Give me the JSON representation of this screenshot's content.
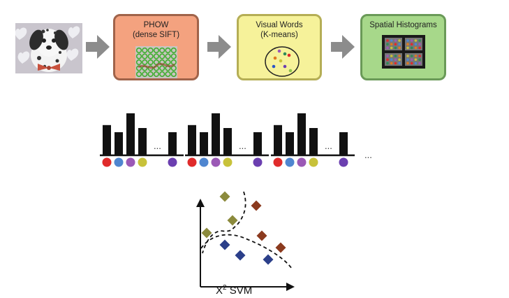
{
  "pipeline": {
    "phow": {
      "title": "PHOW",
      "subtitle": "(dense SIFT)"
    },
    "visual_words": {
      "title": "Visual Words",
      "subtitle": "(K-means)"
    },
    "spatial_histograms": {
      "title": "Spatial Histograms"
    }
  },
  "histograms": {
    "groups": [
      {
        "bars": [
          0.72,
          0.55,
          1.0,
          0.65
        ],
        "last_bar": 0.55
      },
      {
        "bars": [
          0.72,
          0.55,
          1.0,
          0.65
        ],
        "last_bar": 0.55
      },
      {
        "bars": [
          0.72,
          0.55,
          1.0,
          0.65
        ],
        "last_bar": 0.55
      }
    ],
    "word_colors": [
      "#e02b2b",
      "#4f86d0",
      "#9b59b6",
      "#c8c23a"
    ],
    "last_word_color": "#6b3fb0",
    "inner_ellipsis": "...",
    "trailing_ellipsis": "..."
  },
  "svm": {
    "label_x": "X",
    "label_sup": "2",
    "label_rest": " SVM",
    "colors": {
      "olive": "#8b8a3c",
      "rust": "#8b3a1e",
      "navy": "#2b3f8a"
    }
  }
}
